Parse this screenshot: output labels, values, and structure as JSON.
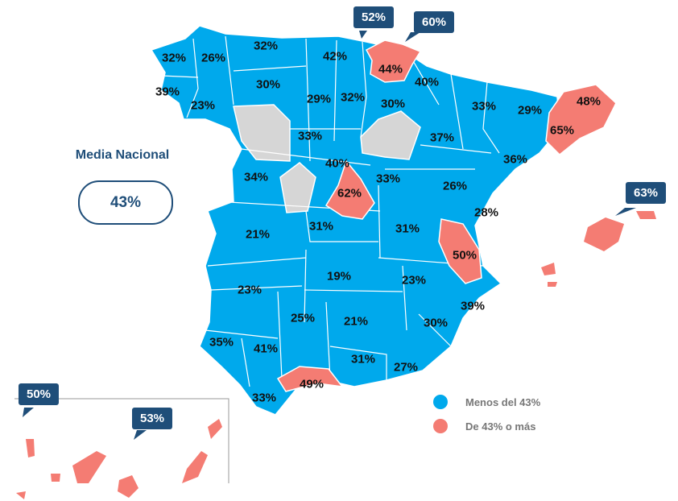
{
  "colors": {
    "below": "#00a9ec",
    "above": "#f47c73",
    "nodata": "#d6d6d6",
    "callout": "#1f4e79"
  },
  "media": {
    "title": "Media Nacional",
    "value": "43%"
  },
  "legend": {
    "below_label": "Menos del 43%",
    "above_label": "De 43% o más"
  },
  "labels": [
    "32%",
    "26%",
    "32%",
    "42%",
    "44%",
    "40%",
    "39%",
    "30%",
    "29%",
    "32%",
    "30%",
    "33%",
    "29%",
    "48%",
    "23%",
    "33%",
    "37%",
    "65%",
    "36%",
    "40%",
    "62%",
    "33%",
    "34%",
    "26%",
    "28%",
    "31%",
    "31%",
    "21%",
    "50%",
    "19%",
    "23%",
    "23%",
    "39%",
    "25%",
    "21%",
    "30%",
    "35%",
    "41%",
    "31%",
    "27%",
    "49%",
    "33%"
  ],
  "callouts": [
    "52%",
    "60%",
    "63%",
    "50%",
    "53%"
  ]
}
